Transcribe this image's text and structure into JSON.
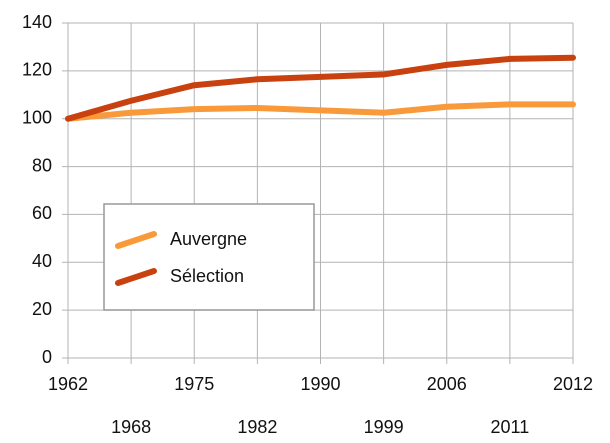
{
  "chart_data": {
    "type": "line",
    "categories": [
      "1962",
      "1968",
      "1975",
      "1982",
      "1990",
      "1999",
      "2006",
      "2011",
      "2012"
    ],
    "series": [
      {
        "name": "Auvergne",
        "color": "#f89a3a",
        "values": [
          100,
          102.5,
          104,
          104.5,
          103.5,
          102.5,
          105,
          106,
          106
        ]
      },
      {
        "name": "Sélection",
        "color": "#c9410f",
        "values": [
          100,
          107.5,
          114,
          116.5,
          117.5,
          118.5,
          122.5,
          125,
          125.5
        ]
      }
    ],
    "ylim": [
      0,
      140
    ],
    "yticks": [
      0,
      20,
      40,
      60,
      80,
      100,
      120,
      140
    ],
    "grid": true
  }
}
